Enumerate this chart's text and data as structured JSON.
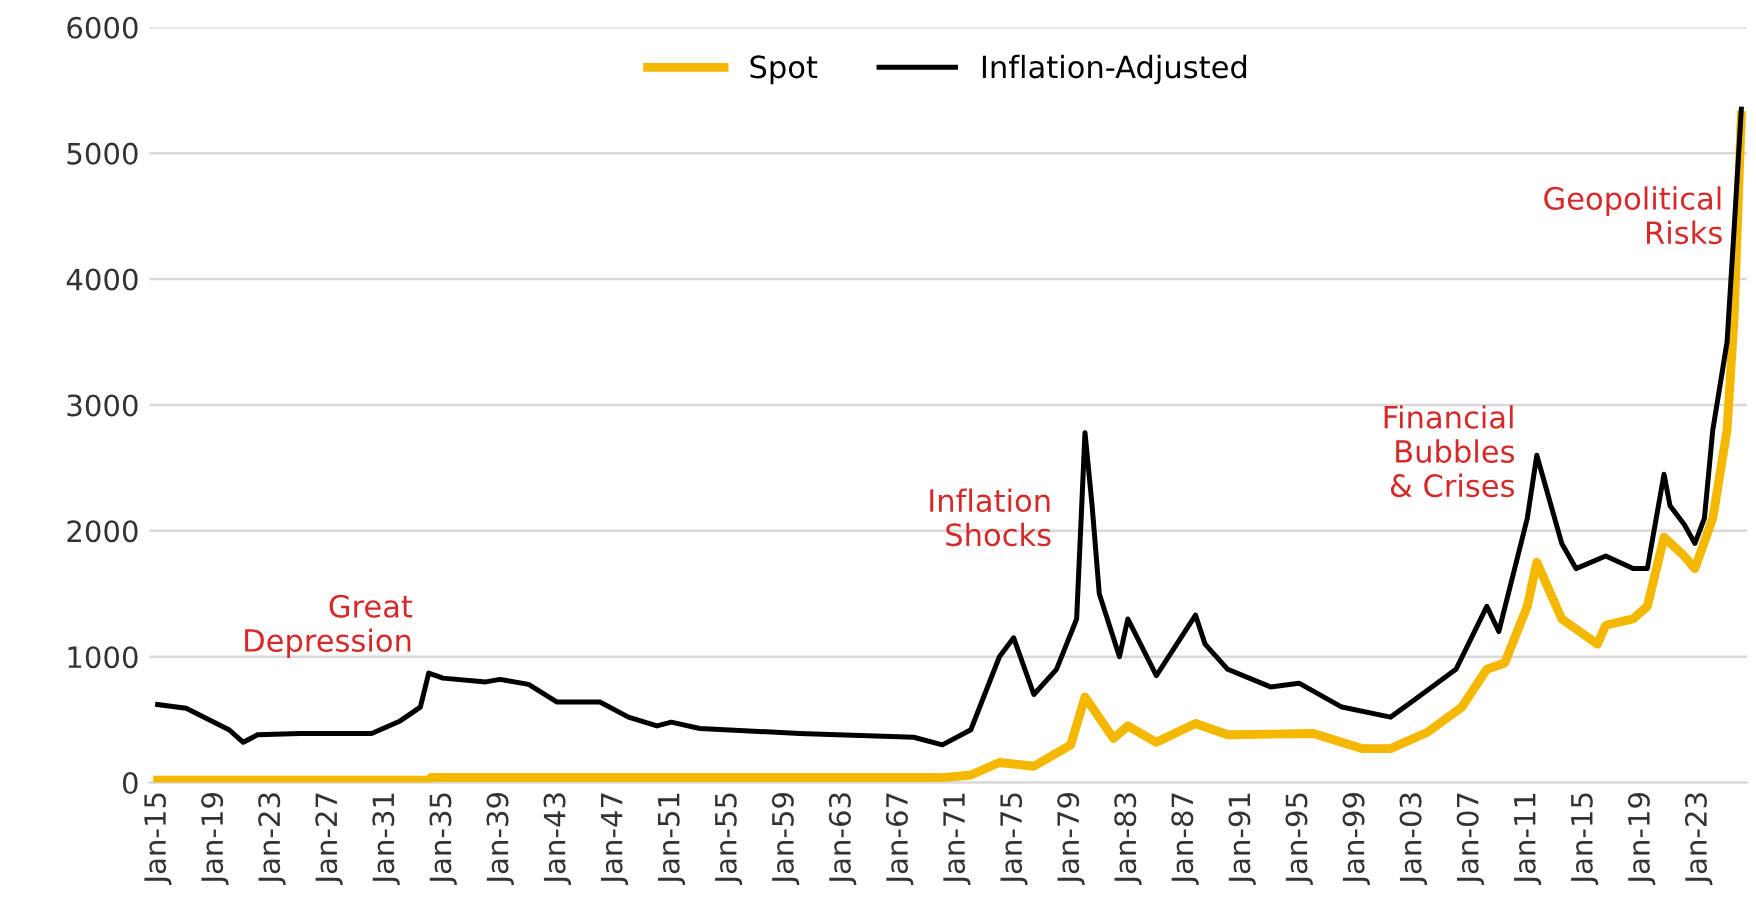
{
  "chart_data": {
    "type": "line",
    "xlim": [
      "1914-06",
      "2026-06"
    ],
    "ylim": [
      0,
      6000
    ],
    "yticks": [
      0,
      1000,
      2000,
      3000,
      4000,
      5000,
      6000
    ],
    "xticks": [
      {
        "value": "1915-01",
        "label": "Jan-15"
      },
      {
        "value": "1919-01",
        "label": "Jan-19"
      },
      {
        "value": "1923-01",
        "label": "Jan-23"
      },
      {
        "value": "1927-01",
        "label": "Jan-27"
      },
      {
        "value": "1931-01",
        "label": "Jan-31"
      },
      {
        "value": "1935-01",
        "label": "Jan-35"
      },
      {
        "value": "1939-01",
        "label": "Jan-39"
      },
      {
        "value": "1943-01",
        "label": "Jan-43"
      },
      {
        "value": "1947-01",
        "label": "Jan-47"
      },
      {
        "value": "1951-01",
        "label": "Jan-51"
      },
      {
        "value": "1955-01",
        "label": "Jan-55"
      },
      {
        "value": "1959-01",
        "label": "Jan-59"
      },
      {
        "value": "1963-01",
        "label": "Jan-63"
      },
      {
        "value": "1967-01",
        "label": "Jan-67"
      },
      {
        "value": "1971-01",
        "label": "Jan-71"
      },
      {
        "value": "1975-01",
        "label": "Jan-75"
      },
      {
        "value": "1979-01",
        "label": "Jan-79"
      },
      {
        "value": "1983-01",
        "label": "Jan-83"
      },
      {
        "value": "1987-01",
        "label": "Jan-87"
      },
      {
        "value": "1991-01",
        "label": "Jan-91"
      },
      {
        "value": "1995-01",
        "label": "Jan-95"
      },
      {
        "value": "1999-01",
        "label": "Jan-99"
      },
      {
        "value": "2003-01",
        "label": "Jan-03"
      },
      {
        "value": "2007-01",
        "label": "Jan-07"
      },
      {
        "value": "2011-01",
        "label": "Jan-11"
      },
      {
        "value": "2015-01",
        "label": "Jan-15"
      },
      {
        "value": "2019-01",
        "label": "Jan-19"
      },
      {
        "value": "2023-01",
        "label": "Jan-23"
      }
    ],
    "grid": "y",
    "legend": "top",
    "marker": "none",
    "line_style": "solid",
    "series": [
      {
        "name": "Spot",
        "color": "#f5b800",
        "x": [
          "1915-01",
          "1934-01",
          "1934-03",
          "1970-01",
          "1972-01",
          "1974-01",
          "1976-06",
          "1979-01",
          "1980-01",
          "1982-01",
          "1983-01",
          "1985-01",
          "1987-10",
          "1990-01",
          "1996-01",
          "1999-06",
          "2001-06",
          "2004-01",
          "2006-06",
          "2008-03",
          "2009-06",
          "2011-01",
          "2011-09",
          "2013-06",
          "2015-12",
          "2016-07",
          "2018-06",
          "2019-06",
          "2020-08",
          "2022-01",
          "2022-10",
          "2024-01",
          "2025-01",
          "2025-07",
          "2026-01"
        ],
        "values": [
          20,
          20,
          40,
          40,
          60,
          160,
          130,
          300,
          680,
          350,
          450,
          320,
          470,
          380,
          390,
          270,
          270,
          400,
          600,
          900,
          950,
          1400,
          1750,
          1300,
          1100,
          1250,
          1300,
          1400,
          1950,
          1800,
          1700,
          2100,
          2800,
          3700,
          5300
        ]
      },
      {
        "name": "Inflation-Adjusted",
        "color": "#000000",
        "x": [
          "1915-01",
          "1917-01",
          "1920-01",
          "1921-01",
          "1922-01",
          "1925-01",
          "1930-01",
          "1932-01",
          "1933-06",
          "1934-01",
          "1935-01",
          "1938-01",
          "1939-01",
          "1941-01",
          "1943-01",
          "1946-01",
          "1948-01",
          "1950-01",
          "1951-01",
          "1953-01",
          "1960-01",
          "1968-01",
          "1970-01",
          "1972-01",
          "1974-01",
          "1975-01",
          "1976-06",
          "1978-01",
          "1979-06",
          "1980-01",
          "1980-07",
          "1981-01",
          "1982-06",
          "1983-01",
          "1985-01",
          "1987-10",
          "1988-06",
          "1990-01",
          "1993-01",
          "1995-01",
          "1998-01",
          "2001-06",
          "2003-01",
          "2006-01",
          "2008-03",
          "2009-01",
          "2011-01",
          "2011-09",
          "2013-06",
          "2014-06",
          "2016-07",
          "2018-06",
          "2019-06",
          "2020-08",
          "2021-01",
          "2022-01",
          "2022-10",
          "2023-06",
          "2024-01",
          "2025-01",
          "2025-07",
          "2026-01"
        ],
        "values": [
          620,
          590,
          420,
          320,
          380,
          390,
          390,
          490,
          600,
          870,
          830,
          800,
          820,
          780,
          640,
          640,
          520,
          450,
          480,
          430,
          390,
          360,
          300,
          420,
          1000,
          1150,
          700,
          900,
          1300,
          2780,
          2200,
          1500,
          1000,
          1300,
          850,
          1330,
          1100,
          900,
          760,
          790,
          600,
          520,
          650,
          900,
          1400,
          1200,
          2100,
          2600,
          1900,
          1700,
          1800,
          1700,
          1700,
          2450,
          2200,
          2050,
          1900,
          2100,
          2800,
          3500,
          4400,
          5350
        ]
      }
    ],
    "annotations": [
      "Great\nDepression",
      "Inflation\nShocks",
      "Financial\nBubbles\n& Crises",
      "Geopolitical\nRisks"
    ]
  }
}
